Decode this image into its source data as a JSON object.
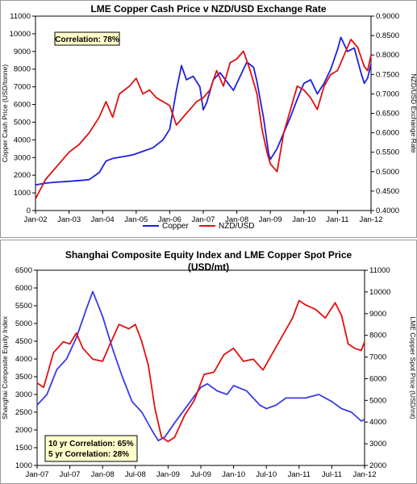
{
  "chart_data": [
    {
      "type": "line",
      "title": "LME Copper Cash Price v NZD/USD Exchange Rate",
      "ylabel_left": "Copper Cash Price (USD/tonne)",
      "ylabel_right": "NZD/USD Exchange Rate",
      "x_ticks": [
        "Jan-02",
        "Jan-03",
        "Jan-04",
        "Jan-05",
        "Jan-06",
        "Jan-07",
        "Jan-08",
        "Jan-09",
        "Jan-10",
        "Jan-11",
        "Jan-12"
      ],
      "y_left_ticks": [
        "0",
        "1000",
        "2000",
        "3000",
        "4000",
        "5000",
        "6000",
        "7000",
        "8000",
        "9000",
        "10000",
        "11000"
      ],
      "y_right_ticks": [
        "0.4000",
        "0.4500",
        "0.5000",
        "0.5500",
        "0.6000",
        "0.6500",
        "0.7000",
        "0.7500",
        "0.8000",
        "0.8500",
        "0.9000"
      ],
      "xlim": [
        2002.0,
        2012.0
      ],
      "ylim_left": [
        0,
        11000
      ],
      "ylim_right": [
        0.4,
        0.9
      ],
      "grid": false,
      "legend_position": "bottom",
      "annotation": "Correlation: 78%",
      "series": [
        {
          "name": "Copper",
          "axis": "left",
          "color": "#1f1fe0",
          "x": [
            2002.0,
            2002.3,
            2002.6,
            2003.0,
            2003.3,
            2003.6,
            2003.9,
            2004.1,
            2004.3,
            2004.6,
            2004.9,
            2005.2,
            2005.5,
            2005.8,
            2006.0,
            2006.2,
            2006.35,
            2006.5,
            2006.7,
            2006.9,
            2007.0,
            2007.1,
            2007.3,
            2007.5,
            2007.7,
            2007.9,
            2008.1,
            2008.3,
            2008.5,
            2008.6,
            2008.8,
            2008.95,
            2009.0,
            2009.2,
            2009.4,
            2009.6,
            2009.8,
            2010.0,
            2010.2,
            2010.4,
            2010.6,
            2010.8,
            2011.0,
            2011.1,
            2011.3,
            2011.5,
            2011.7,
            2011.8,
            2011.9,
            2012.0
          ],
          "y": [
            1450,
            1550,
            1600,
            1650,
            1700,
            1750,
            2150,
            2800,
            2950,
            3050,
            3150,
            3350,
            3550,
            4000,
            4600,
            6800,
            8200,
            7400,
            7600,
            7000,
            5700,
            6100,
            7400,
            7800,
            7300,
            6800,
            7600,
            8400,
            8100,
            7300,
            5200,
            3200,
            2900,
            3500,
            4400,
            5300,
            6300,
            7200,
            7400,
            6600,
            7200,
            8000,
            9100,
            9800,
            9000,
            9200,
            7800,
            7200,
            7500,
            8300
          ]
        },
        {
          "name": "NZD/USD",
          "axis": "right",
          "color": "#e01010",
          "x": [
            2002.0,
            2002.3,
            2002.6,
            2003.0,
            2003.3,
            2003.6,
            2003.9,
            2004.1,
            2004.3,
            2004.5,
            2004.8,
            2005.0,
            2005.2,
            2005.4,
            2005.6,
            2005.8,
            2006.0,
            2006.2,
            2006.4,
            2006.6,
            2006.8,
            2007.0,
            2007.2,
            2007.4,
            2007.6,
            2007.8,
            2008.0,
            2008.2,
            2008.4,
            2008.6,
            2008.75,
            2008.9,
            2009.0,
            2009.2,
            2009.4,
            2009.6,
            2009.8,
            2010.0,
            2010.2,
            2010.4,
            2010.6,
            2010.8,
            2011.0,
            2011.2,
            2011.4,
            2011.6,
            2011.8,
            2011.9,
            2012.0
          ],
          "y": [
            0.43,
            0.48,
            0.51,
            0.55,
            0.57,
            0.6,
            0.64,
            0.68,
            0.64,
            0.7,
            0.72,
            0.74,
            0.7,
            0.71,
            0.69,
            0.68,
            0.67,
            0.62,
            0.64,
            0.66,
            0.68,
            0.69,
            0.71,
            0.76,
            0.72,
            0.78,
            0.79,
            0.81,
            0.76,
            0.7,
            0.61,
            0.55,
            0.52,
            0.5,
            0.6,
            0.66,
            0.72,
            0.71,
            0.69,
            0.66,
            0.72,
            0.75,
            0.76,
            0.8,
            0.84,
            0.82,
            0.77,
            0.76,
            0.8
          ]
        }
      ]
    },
    {
      "type": "line",
      "title": "Shanghai Composite Equity Index and LME Copper Spot Price (USD/mt)",
      "title_lines": [
        "Shanghai Composite Equity Index and LME Copper Spot Price",
        "(USD/mt)"
      ],
      "ylabel_left": "Shanghai Composite Equity Index",
      "ylabel_right": "LME Copper Spot Price (USD/mt)",
      "x_ticks": [
        "Jan-07",
        "Jul-07",
        "Jan-08",
        "Jul-08",
        "Jan-09",
        "Jul-09",
        "Jan-10",
        "Jul-10",
        "Jan-11",
        "Jul-11",
        "Jan-12"
      ],
      "y_left_ticks": [
        "1000",
        "1500",
        "2000",
        "2500",
        "3000",
        "3500",
        "4000",
        "4500",
        "5000",
        "5500",
        "6000",
        "6500"
      ],
      "y_right_ticks": [
        "2000",
        "3000",
        "4000",
        "5000",
        "6000",
        "7000",
        "8000",
        "9000",
        "10000",
        "11000"
      ],
      "xlim": [
        2007.0,
        2012.0
      ],
      "ylim_left": [
        1000,
        6500
      ],
      "ylim_right": [
        2000,
        11000
      ],
      "grid": false,
      "annotation_lines": [
        "10 yr Correlation: 65%",
        "5 yr Correlation: 28%"
      ],
      "series": [
        {
          "name": "Shanghai Composite",
          "axis": "left",
          "color": "#3a3ae8",
          "x": [
            2007.0,
            2007.15,
            2007.3,
            2007.45,
            2007.6,
            2007.75,
            2007.85,
            2008.0,
            2008.15,
            2008.3,
            2008.45,
            2008.6,
            2008.75,
            2008.85,
            2008.95,
            2009.1,
            2009.3,
            2009.5,
            2009.6,
            2009.75,
            2009.9,
            2010.0,
            2010.2,
            2010.4,
            2010.5,
            2010.65,
            2010.8,
            2010.95,
            2011.1,
            2011.3,
            2011.5,
            2011.65,
            2011.8,
            2011.95,
            2012.0
          ],
          "y": [
            2700,
            3000,
            3700,
            4000,
            4600,
            5400,
            5900,
            5200,
            4300,
            3500,
            2800,
            2500,
            2000,
            1700,
            1800,
            2200,
            2700,
            3200,
            3300,
            3100,
            3000,
            3250,
            3100,
            2700,
            2600,
            2700,
            2900,
            2900,
            2900,
            3000,
            2800,
            2600,
            2500,
            2250,
            2300
          ]
        },
        {
          "name": "LME Copper Spot",
          "axis": "right",
          "color": "#e01010",
          "x": [
            2007.0,
            2007.1,
            2007.25,
            2007.4,
            2007.5,
            2007.6,
            2007.7,
            2007.85,
            2008.0,
            2008.1,
            2008.25,
            2008.4,
            2008.5,
            2008.6,
            2008.7,
            2008.8,
            2008.9,
            2009.0,
            2009.1,
            2009.25,
            2009.4,
            2009.55,
            2009.7,
            2009.85,
            2010.0,
            2010.15,
            2010.3,
            2010.45,
            2010.6,
            2010.75,
            2010.9,
            2011.0,
            2011.1,
            2011.25,
            2011.4,
            2011.55,
            2011.65,
            2011.75,
            2011.85,
            2011.95,
            2012.0
          ],
          "y": [
            5800,
            5600,
            7200,
            7700,
            7600,
            8100,
            7400,
            6900,
            6800,
            7500,
            8500,
            8300,
            8500,
            7700,
            6600,
            4600,
            3300,
            3100,
            3300,
            4300,
            5000,
            6200,
            6300,
            7100,
            7400,
            6800,
            6900,
            6400,
            7200,
            8000,
            8800,
            9600,
            9400,
            9200,
            8800,
            9500,
            8900,
            7600,
            7400,
            7300,
            7700
          ]
        }
      ]
    }
  ]
}
